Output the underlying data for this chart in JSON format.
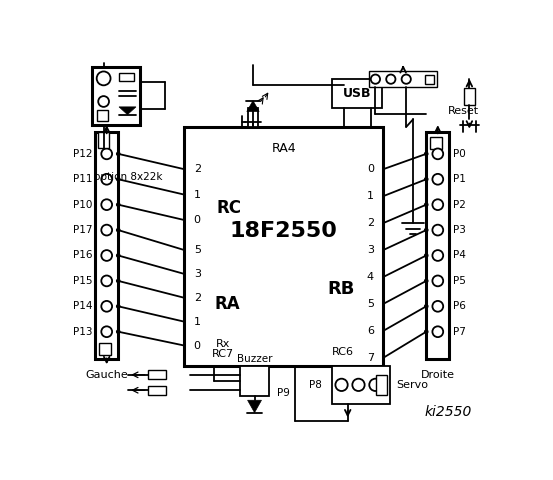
{
  "title": "ki2550",
  "bg_color": "#ffffff",
  "chip_label": "18F2550",
  "chip_sublabel": "RA4",
  "chip_rc_label": "RC",
  "chip_ra_label": "RA",
  "chip_rb_label": "RB",
  "option_label": "option 8x22k",
  "gauche_label": "Gauche",
  "droite_label": "Droite",
  "buzzer_label": "Buzzer",
  "servo_label": "Servo",
  "p8_label": "P8",
  "p9_label": "P9",
  "reset_label": "Reset",
  "left_pins": [
    "P12",
    "P11",
    "P10",
    "P17",
    "P16",
    "P15",
    "P14",
    "P13"
  ],
  "right_pins": [
    "P0",
    "P1",
    "P2",
    "P3",
    "P4",
    "P5",
    "P6",
    "P7"
  ],
  "rc_pin_labels": [
    "2",
    "1",
    "0"
  ],
  "ra_pin_labels": [
    "5",
    "3",
    "2",
    "1",
    "0"
  ],
  "rb_pin_labels": [
    "0",
    "1",
    "2",
    "3",
    "4",
    "5",
    "6",
    "7"
  ]
}
